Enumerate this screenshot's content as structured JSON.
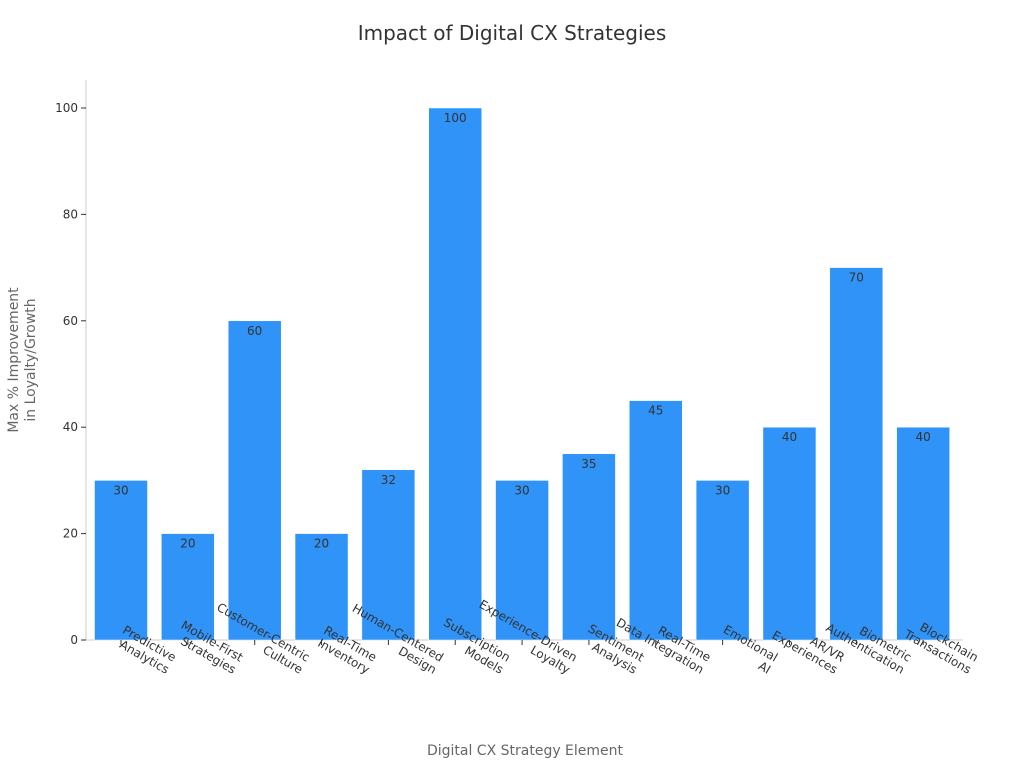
{
  "chart_data": {
    "type": "bar",
    "title": "Impact of Digital CX Strategies",
    "xlabel": "Digital CX Strategy Element",
    "ylabel": [
      "Max % Improvement",
      "in Loyalty/Growth"
    ],
    "ylim": [
      0,
      105
    ],
    "yticks": [
      0,
      20,
      40,
      60,
      80,
      100
    ],
    "grid": false,
    "bar_color": "#2f93f7",
    "categories": [
      [
        "Predictive",
        "Analytics"
      ],
      [
        "Mobile-First",
        "Strategies"
      ],
      [
        "Customer-Centric",
        "Culture"
      ],
      [
        "Real-Time",
        "Inventory"
      ],
      [
        "Human-Centered",
        "Design"
      ],
      [
        "Subscription",
        "Models"
      ],
      [
        "Experience-Driven",
        "Loyalty"
      ],
      [
        "Sentiment",
        "Analysis"
      ],
      [
        "Real-Time",
        "Data Integration"
      ],
      [
        "Emotional",
        "AI"
      ],
      [
        "AR/VR",
        "Experiences"
      ],
      [
        "Biometric",
        "Authentication"
      ],
      [
        "Blockchain",
        "Transactions"
      ]
    ],
    "values": [
      30,
      20,
      60,
      20,
      32,
      100,
      30,
      35,
      45,
      30,
      40,
      70,
      40
    ]
  }
}
